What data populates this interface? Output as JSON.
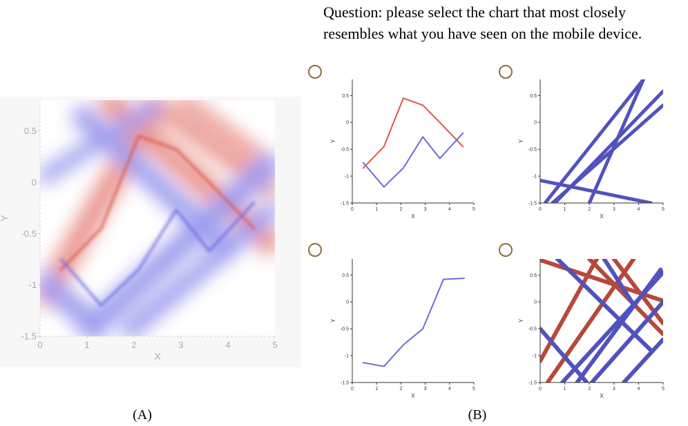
{
  "question": {
    "line1": "Question: please select the chart that most closely",
    "line2": "resembles what  you have seen on the mobile device."
  },
  "captions": {
    "a": "(A)",
    "b": "(B)"
  },
  "colors": {
    "red": "#d9584a",
    "blue": "#6a6ae0",
    "thick_red": "#b5493c",
    "thick_blue": "#5252bd",
    "radio": "#8b6b3f"
  },
  "chart_data": [
    {
      "id": "A",
      "type": "line",
      "xlabel": "X",
      "ylabel": "Y",
      "xlim": [
        0,
        5
      ],
      "ylim": [
        -1.5,
        0.8
      ],
      "xticks": [
        "0",
        "1",
        "2",
        "3",
        "4",
        "5"
      ],
      "yticks": [
        "-1.5",
        "-1",
        "-0.5",
        "0",
        "0.5"
      ],
      "series": [
        {
          "color": "#d9584a",
          "x": [
            0.45,
            1.3,
            2.1,
            2.9,
            3.6,
            4.55
          ],
          "y": [
            -0.85,
            -0.45,
            0.45,
            0.32,
            0.0,
            -0.45
          ]
        },
        {
          "color": "#6a6ae0",
          "x": [
            0.45,
            1.3,
            2.1,
            2.9,
            3.6,
            4.55
          ],
          "y": [
            -0.75,
            -1.2,
            -0.85,
            -0.27,
            -0.67,
            -0.2
          ]
        }
      ]
    },
    {
      "id": "B1",
      "type": "line",
      "xlabel": "X",
      "ylabel": "Y",
      "xlim": [
        0,
        5
      ],
      "ylim": [
        -1.5,
        0.8
      ],
      "xticks": [
        "0",
        "1",
        "2",
        "3",
        "4",
        "5"
      ],
      "yticks": [
        "-1.5",
        "-1",
        "-0.5",
        "0",
        "0.5"
      ],
      "series": [
        {
          "color": "#d9584a",
          "x": [
            0.45,
            1.3,
            2.1,
            2.9,
            3.6,
            4.55
          ],
          "y": [
            -0.85,
            -0.45,
            0.45,
            0.32,
            0.0,
            -0.45
          ]
        },
        {
          "color": "#6a6ae0",
          "x": [
            0.45,
            1.3,
            2.1,
            2.9,
            3.6,
            4.55
          ],
          "y": [
            -0.75,
            -1.2,
            -0.85,
            -0.27,
            -0.67,
            -0.2
          ]
        }
      ]
    },
    {
      "id": "B2",
      "type": "line",
      "xlabel": "X",
      "ylabel": "Y",
      "xlim": [
        0,
        5
      ],
      "ylim": [
        -1.5,
        0.8
      ],
      "xticks": [
        "0",
        "1",
        "2",
        "3",
        "4",
        "5"
      ],
      "yticks": [
        "-1.5",
        "-1",
        "-0.5",
        "0",
        "0.5"
      ],
      "series": [
        {
          "color": "#5252bd",
          "x": [
            0.2,
            4.2
          ],
          "y": [
            -1.5,
            0.8
          ]
        },
        {
          "color": "#5252bd",
          "x": [
            0.6,
            5.0
          ],
          "y": [
            -1.5,
            0.58
          ]
        },
        {
          "color": "#5252bd",
          "x": [
            0.5,
            5.0
          ],
          "y": [
            -1.5,
            0.32
          ]
        },
        {
          "color": "#5252bd",
          "x": [
            0.0,
            4.5
          ],
          "y": [
            -1.08,
            -1.5
          ]
        },
        {
          "color": "#5252bd",
          "x": [
            2.0,
            4.2
          ],
          "y": [
            -1.5,
            0.8
          ]
        }
      ]
    },
    {
      "id": "B3",
      "type": "line",
      "xlabel": "X",
      "ylabel": "Y",
      "xlim": [
        0,
        5
      ],
      "ylim": [
        -1.5,
        0.8
      ],
      "xticks": [
        "0",
        "1",
        "2",
        "3",
        "4",
        "5"
      ],
      "yticks": [
        "-1.5",
        "-1",
        "-0.5",
        "0",
        "0.5"
      ],
      "series": [
        {
          "color": "#6a6ae0",
          "x": [
            0.45,
            1.3,
            2.1,
            2.9,
            3.75,
            4.6
          ],
          "y": [
            -1.13,
            -1.2,
            -0.8,
            -0.5,
            0.42,
            0.44
          ]
        }
      ]
    },
    {
      "id": "B4",
      "type": "line",
      "xlabel": "X",
      "ylabel": "Y",
      "xlim": [
        0,
        5
      ],
      "ylim": [
        -1.5,
        0.8
      ],
      "xticks": [
        "0",
        "1",
        "2",
        "3",
        "4",
        "5"
      ],
      "yticks": [
        "-1.5",
        "-1",
        "-0.5",
        "0",
        "0.5"
      ],
      "series": [
        {
          "color": "#b5493c",
          "x": [
            0.0,
            2.3
          ],
          "y": [
            -1.1,
            0.8
          ]
        },
        {
          "color": "#b5493c",
          "x": [
            0.3,
            3.8
          ],
          "y": [
            -1.5,
            0.8
          ]
        },
        {
          "color": "#b5493c",
          "x": [
            0.0,
            5.0
          ],
          "y": [
            0.78,
            0.02
          ]
        },
        {
          "color": "#b5493c",
          "x": [
            2.0,
            5.0
          ],
          "y": [
            0.8,
            -0.6
          ]
        },
        {
          "color": "#b5493c",
          "x": [
            3.0,
            5.0
          ],
          "y": [
            0.8,
            -0.4
          ]
        },
        {
          "color": "#5252bd",
          "x": [
            0.7,
            4.5
          ],
          "y": [
            0.8,
            -0.9
          ]
        },
        {
          "color": "#5252bd",
          "x": [
            0.0,
            1.9
          ],
          "y": [
            -0.5,
            -1.5
          ]
        },
        {
          "color": "#5252bd",
          "x": [
            0.9,
            5.0
          ],
          "y": [
            -1.5,
            0.55
          ]
        },
        {
          "color": "#5252bd",
          "x": [
            2.1,
            5.0
          ],
          "y": [
            -1.5,
            0.0
          ]
        },
        {
          "color": "#5252bd",
          "x": [
            3.4,
            5.0
          ],
          "y": [
            -1.5,
            -0.7
          ]
        },
        {
          "color": "#5252bd",
          "x": [
            1.5,
            4.9
          ],
          "y": [
            -1.5,
            0.6
          ]
        },
        {
          "color": "#5252bd",
          "x": [
            2.6,
            3.8
          ],
          "y": [
            0.8,
            -0.05
          ]
        }
      ]
    }
  ]
}
